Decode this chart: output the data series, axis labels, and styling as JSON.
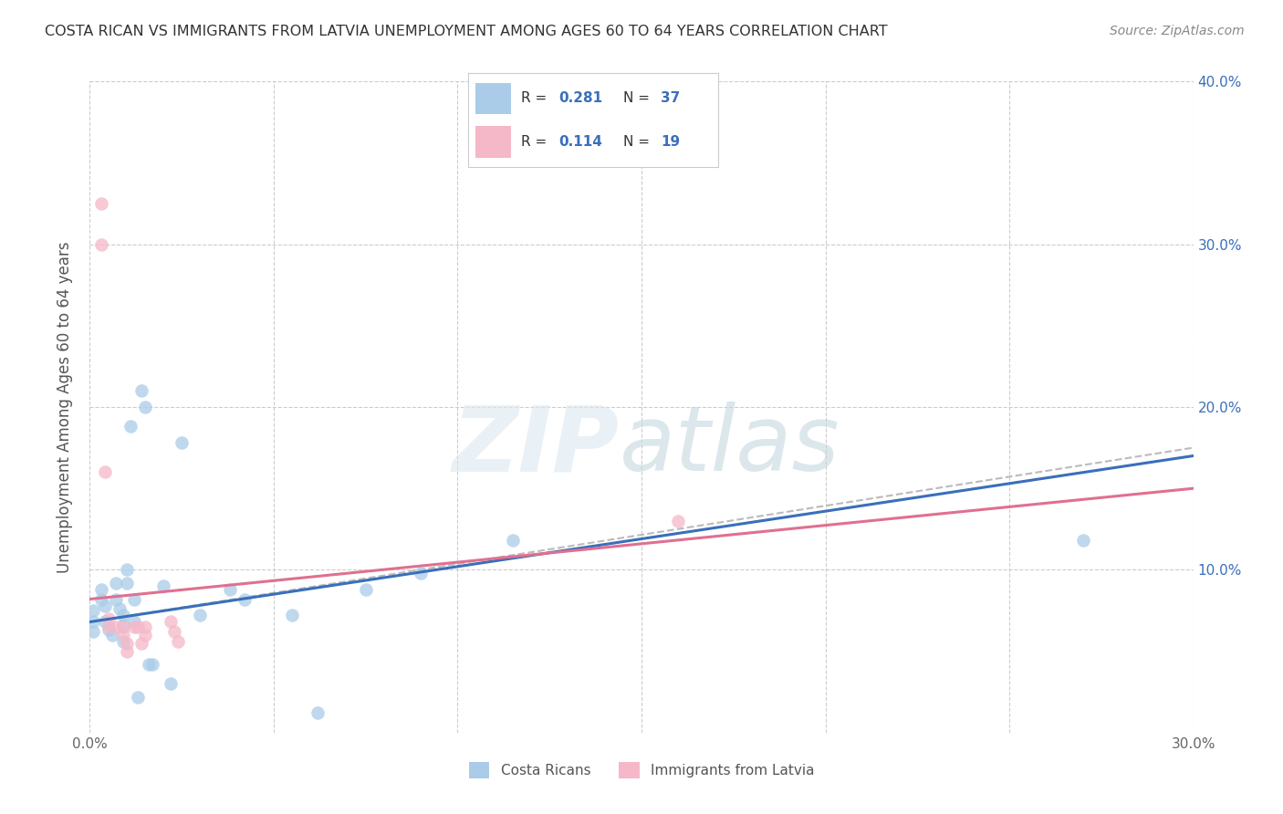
{
  "title": "COSTA RICAN VS IMMIGRANTS FROM LATVIA UNEMPLOYMENT AMONG AGES 60 TO 64 YEARS CORRELATION CHART",
  "source": "Source: ZipAtlas.com",
  "ylabel": "Unemployment Among Ages 60 to 64 years",
  "xlim": [
    0.0,
    0.3
  ],
  "ylim": [
    0.0,
    0.4
  ],
  "xticks": [
    0.0,
    0.05,
    0.1,
    0.15,
    0.2,
    0.25,
    0.3
  ],
  "yticks": [
    0.0,
    0.1,
    0.2,
    0.3,
    0.4
  ],
  "color_blue": "#aacce8",
  "color_pink": "#f5b8c8",
  "color_blue_line": "#3a6fba",
  "color_pink_line": "#e07090",
  "color_dashed": "#bbbbbb",
  "blue_scatter_x": [
    0.001,
    0.001,
    0.001,
    0.003,
    0.003,
    0.004,
    0.004,
    0.005,
    0.006,
    0.007,
    0.007,
    0.008,
    0.009,
    0.009,
    0.009,
    0.01,
    0.01,
    0.011,
    0.012,
    0.012,
    0.013,
    0.014,
    0.015,
    0.016,
    0.017,
    0.02,
    0.022,
    0.025,
    0.03,
    0.038,
    0.042,
    0.055,
    0.062,
    0.075,
    0.09,
    0.115,
    0.27
  ],
  "blue_scatter_y": [
    0.075,
    0.068,
    0.062,
    0.088,
    0.082,
    0.078,
    0.068,
    0.063,
    0.06,
    0.092,
    0.082,
    0.076,
    0.072,
    0.066,
    0.056,
    0.1,
    0.092,
    0.188,
    0.082,
    0.068,
    0.022,
    0.21,
    0.2,
    0.042,
    0.042,
    0.09,
    0.03,
    0.178,
    0.072,
    0.088,
    0.082,
    0.072,
    0.012,
    0.088,
    0.098,
    0.118,
    0.118
  ],
  "pink_scatter_x": [
    0.003,
    0.003,
    0.004,
    0.005,
    0.005,
    0.007,
    0.009,
    0.009,
    0.01,
    0.01,
    0.012,
    0.013,
    0.014,
    0.015,
    0.015,
    0.022,
    0.023,
    0.024,
    0.16
  ],
  "pink_scatter_y": [
    0.325,
    0.3,
    0.16,
    0.07,
    0.065,
    0.065,
    0.065,
    0.06,
    0.055,
    0.05,
    0.065,
    0.065,
    0.055,
    0.065,
    0.06,
    0.068,
    0.062,
    0.056,
    0.13
  ],
  "blue_line_x": [
    0.0,
    0.3
  ],
  "blue_line_y": [
    0.068,
    0.17
  ],
  "pink_line_x": [
    0.0,
    0.3
  ],
  "pink_line_y": [
    0.082,
    0.15
  ],
  "dashed_line_x": [
    0.0,
    0.3
  ],
  "dashed_line_y": [
    0.068,
    0.175
  ],
  "background_color": "#ffffff",
  "grid_color": "#cccccc",
  "title_color": "#333333",
  "right_tick_color": "#3a6fba",
  "legend_r_color": "#333333",
  "legend_n_color": "#3a6fba"
}
